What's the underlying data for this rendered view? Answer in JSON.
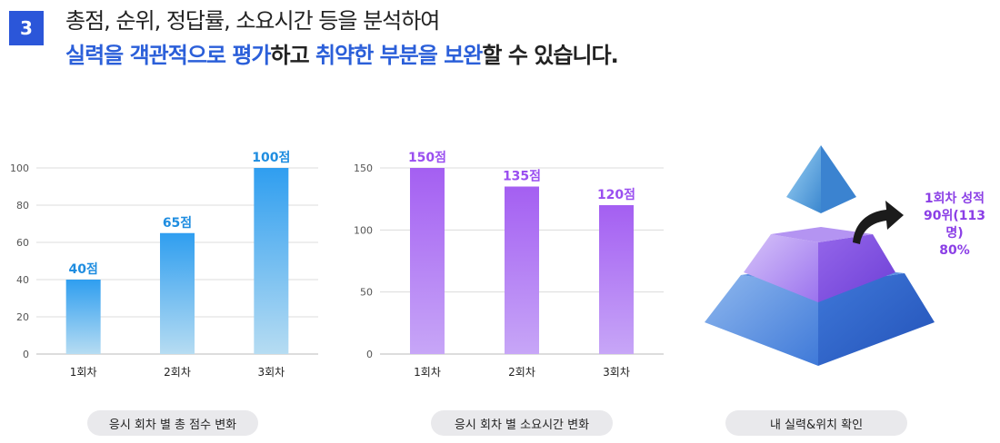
{
  "header": {
    "badge": "3",
    "line1": "총점, 순위, 정답률, 소요시간 등을 분석하여",
    "line2": [
      {
        "text": "실력을 객관적으로 평가",
        "hl": true
      },
      {
        "text": "하고 ",
        "hl": false
      },
      {
        "text": "취약한 부분을 보완",
        "hl": true
      },
      {
        "text": "할 수 있습니다.",
        "hl": false
      }
    ]
  },
  "chart_data": [
    {
      "type": "bar",
      "categories": [
        "1회차",
        "2회차",
        "3회차"
      ],
      "values": [
        40,
        65,
        100
      ],
      "data_labels": [
        "40점",
        "65점",
        "100점"
      ],
      "yticks": [
        0,
        20,
        40,
        60,
        80,
        100
      ],
      "ylim": [
        0,
        100
      ],
      "grid": true,
      "caption": "응시 회차 별 총 점수 변화",
      "colors": {
        "bar_top": "#2f9ef0",
        "bar_bottom": "#b6dcf2",
        "label": "#1f8de0"
      }
    },
    {
      "type": "bar",
      "categories": [
        "1회차",
        "2회차",
        "3회차"
      ],
      "values": [
        150,
        135,
        120
      ],
      "data_labels": [
        "150점",
        "135점",
        "120점"
      ],
      "yticks": [
        0,
        50,
        100,
        150
      ],
      "ylim": [
        0,
        150
      ],
      "grid": true,
      "caption": "응시 회차 별 소요시간 변화",
      "colors": {
        "bar_top": "#a45ff2",
        "bar_bottom": "#c7a6f7",
        "label": "#9a4ff0"
      }
    }
  ],
  "pyramid": {
    "caption": "내 실력&위치 확인",
    "result_lines": [
      "1회차 성적",
      "90위(113명)",
      "80%"
    ],
    "colors": {
      "top": "#3d8fd6",
      "middle": "#8c5ae8",
      "bottom": "#2f68cf",
      "text": "#8b3fe6"
    }
  }
}
